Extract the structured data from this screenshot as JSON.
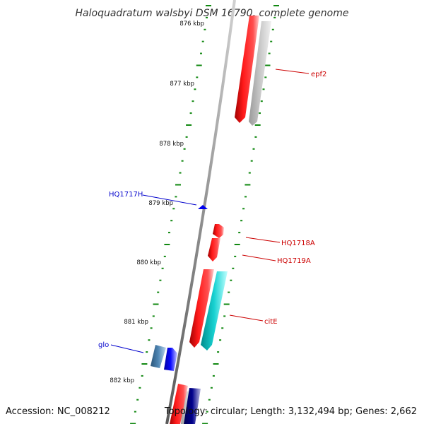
{
  "title": "Haloquadratum walsbyi DSM 16790, complete genome",
  "footer": {
    "accession": "Accession: NC_008212",
    "summary": "Topology: circular; Length: 3,132,494 bp; Genes: 2,662"
  },
  "ticks": [
    {
      "label": "876 kbp"
    },
    {
      "label": "877 kbp"
    },
    {
      "label": "878 kbp"
    },
    {
      "label": "879 kbp"
    },
    {
      "label": "880 kbp"
    },
    {
      "label": "881 kbp"
    },
    {
      "label": "882 kbp"
    }
  ],
  "gene_labels": [
    {
      "name": "epf2",
      "strand": "forward"
    },
    {
      "name": "HQ1717H",
      "strand": "reverse"
    },
    {
      "name": "HQ1718A",
      "strand": "forward"
    },
    {
      "name": "HQ1719A",
      "strand": "forward"
    },
    {
      "name": "citE",
      "strand": "forward"
    },
    {
      "name": "glo",
      "strand": "reverse"
    }
  ],
  "colors": {
    "forward_gene": "#ff0000",
    "forward_label": "#cc0000",
    "reverse_gene": "#0000ee",
    "reverse_label": "#0000cc",
    "cds_forward": "#c8c8c8",
    "cds_cyan": "#00c8c8",
    "cds_reverse_steel": "#4a7aa6",
    "cds_reverse_navy": "#000080",
    "backbone": "#888888",
    "tick": "#118811"
  }
}
